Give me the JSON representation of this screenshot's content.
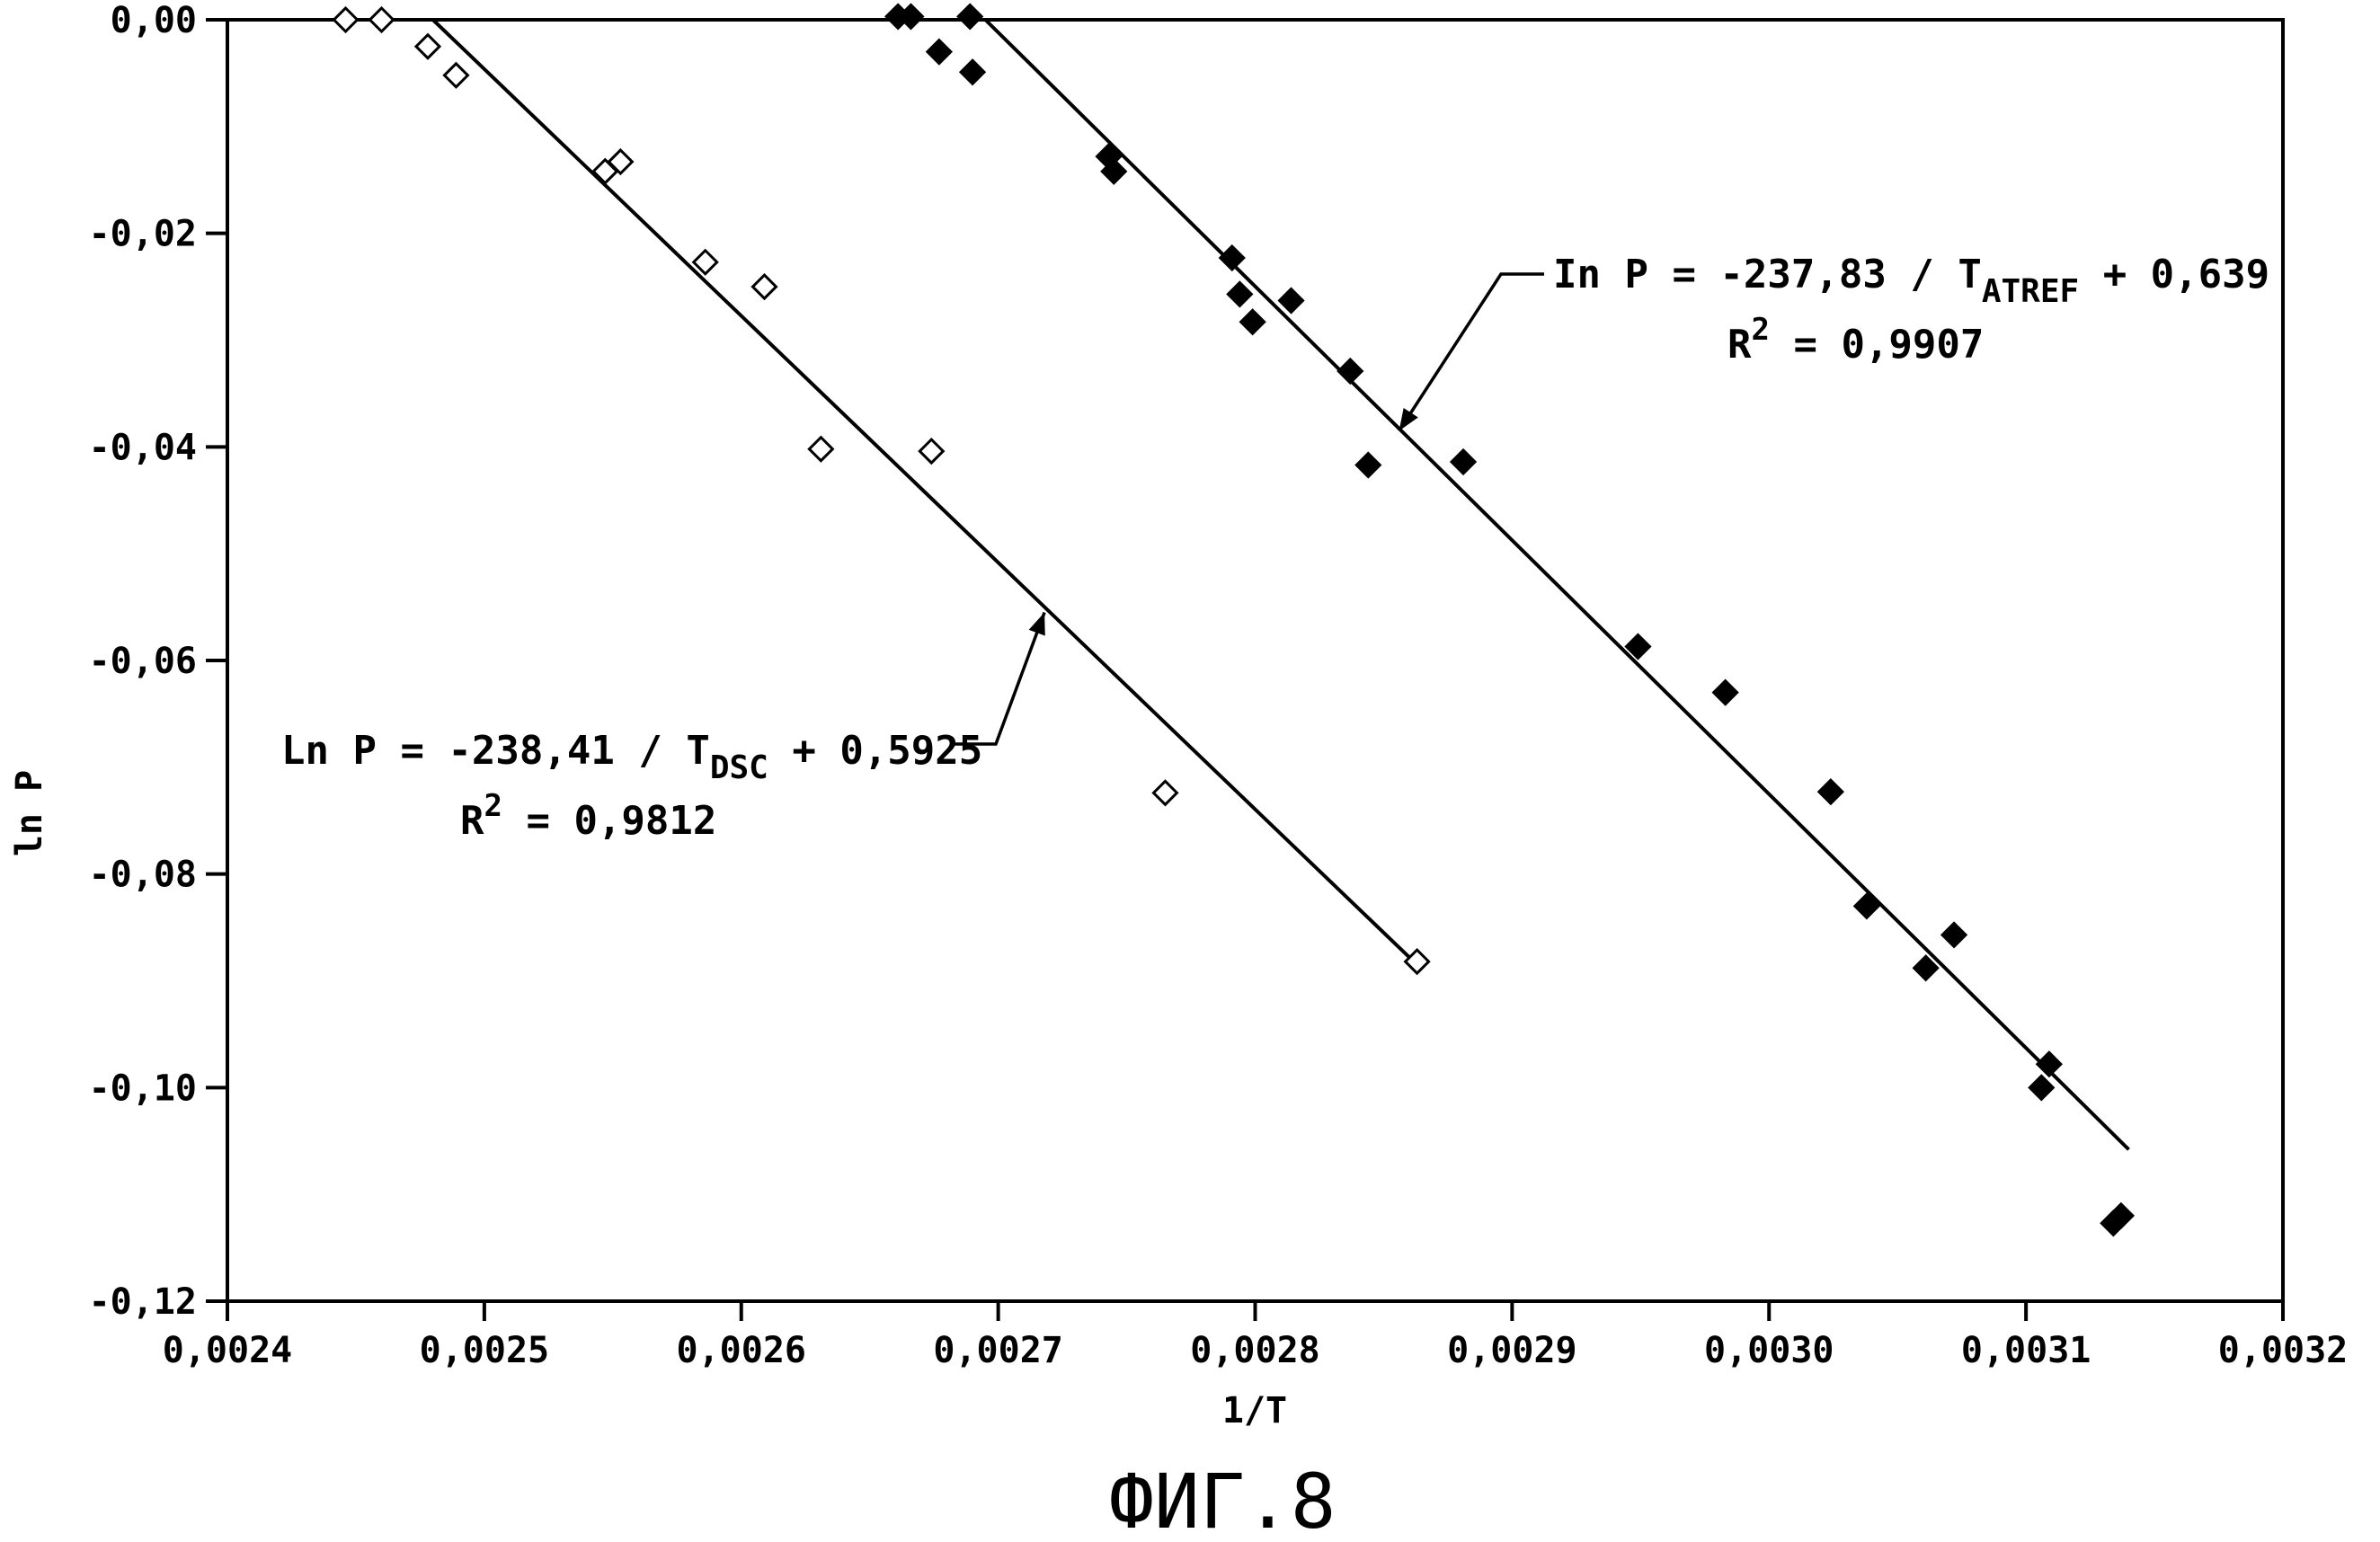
{
  "chart_data": {
    "type": "scatter",
    "title": "",
    "caption": "ФИГ.8",
    "xlabel": "1/T",
    "ylabel": "ln P",
    "xlim": [
      0.0024,
      0.0032
    ],
    "ylim": [
      -0.12,
      0.0
    ],
    "x_ticks": [
      0.0024,
      0.0025,
      0.0026,
      0.0027,
      0.0028,
      0.0029,
      0.003,
      0.0031,
      0.0032
    ],
    "x_tick_labels": [
      "0,0024",
      "0,0025",
      "0,0026",
      "0,0027",
      "0,0028",
      "0,0029",
      "0,0030",
      "0,0031",
      "0,0032"
    ],
    "y_ticks": [
      0.0,
      -0.02,
      -0.04,
      -0.06,
      -0.08,
      -0.1,
      -0.12
    ],
    "y_tick_labels": [
      "0,00",
      "-0,02",
      "-0,04",
      "-0,06",
      "-0,08",
      "-0,10",
      "-0,12"
    ],
    "grid": false,
    "series": [
      {
        "name": "DSC",
        "marker": "open-diamond",
        "x": [
          0.002446,
          0.00246,
          0.002478,
          0.002489,
          0.002547,
          0.002553,
          0.002586,
          0.002609,
          0.002631,
          0.002674,
          0.002765,
          0.002863
        ],
        "y": [
          0.0,
          0.0,
          -0.0025,
          -0.0052,
          -0.0142,
          -0.0133,
          -0.0227,
          -0.025,
          -0.0402,
          -0.0404,
          -0.0724,
          -0.0882
        ],
        "fit_line": {
          "x": [
            0.00248,
            0.00286
          ],
          "y": [
            0.0,
            -0.0878
          ]
        },
        "equation": {
          "lhs": "Ln P = -238,41 / T",
          "subscript": "DSC",
          "rhs": " + 0,5925",
          "r2_base": "R",
          "r2_sup": "2",
          "r2_value": " = 0,9812",
          "arrow_target": [
            0.002718,
            -0.0555
          ]
        }
      },
      {
        "name": "ATREF",
        "marker": "filled-diamond",
        "x": [
          0.002661,
          0.002666,
          0.002677,
          0.002689,
          0.00269,
          0.002743,
          0.002745,
          0.002791,
          0.002794,
          0.002799,
          0.002814,
          0.002837,
          0.002844,
          0.002881,
          0.002949,
          0.002983,
          0.003024,
          0.003038,
          0.003061,
          0.003072,
          0.003106,
          0.003109,
          0.003134,
          0.003137
        ],
        "y": [
          0.0003,
          0.0003,
          -0.003,
          0.0003,
          -0.0049,
          -0.0128,
          -0.0142,
          -0.0223,
          -0.0257,
          -0.0283,
          -0.0263,
          -0.0329,
          -0.0417,
          -0.0414,
          -0.0587,
          -0.063,
          -0.0723,
          -0.083,
          -0.0888,
          -0.0857,
          -0.1,
          -0.0978,
          -0.1127,
          -0.112
        ],
        "fit_line": {
          "x": [
            0.002695,
            0.00314
          ],
          "y": [
            0.0,
            -0.1058
          ]
        },
        "equation": {
          "lhs": "In P = -237,83 / T",
          "subscript": "ATREF",
          "rhs": " + 0,639",
          "r2_base": "R",
          "r2_sup": "2",
          "r2_value": " = 0,9907",
          "arrow_target": [
            0.002856,
            -0.0385
          ]
        }
      }
    ]
  }
}
